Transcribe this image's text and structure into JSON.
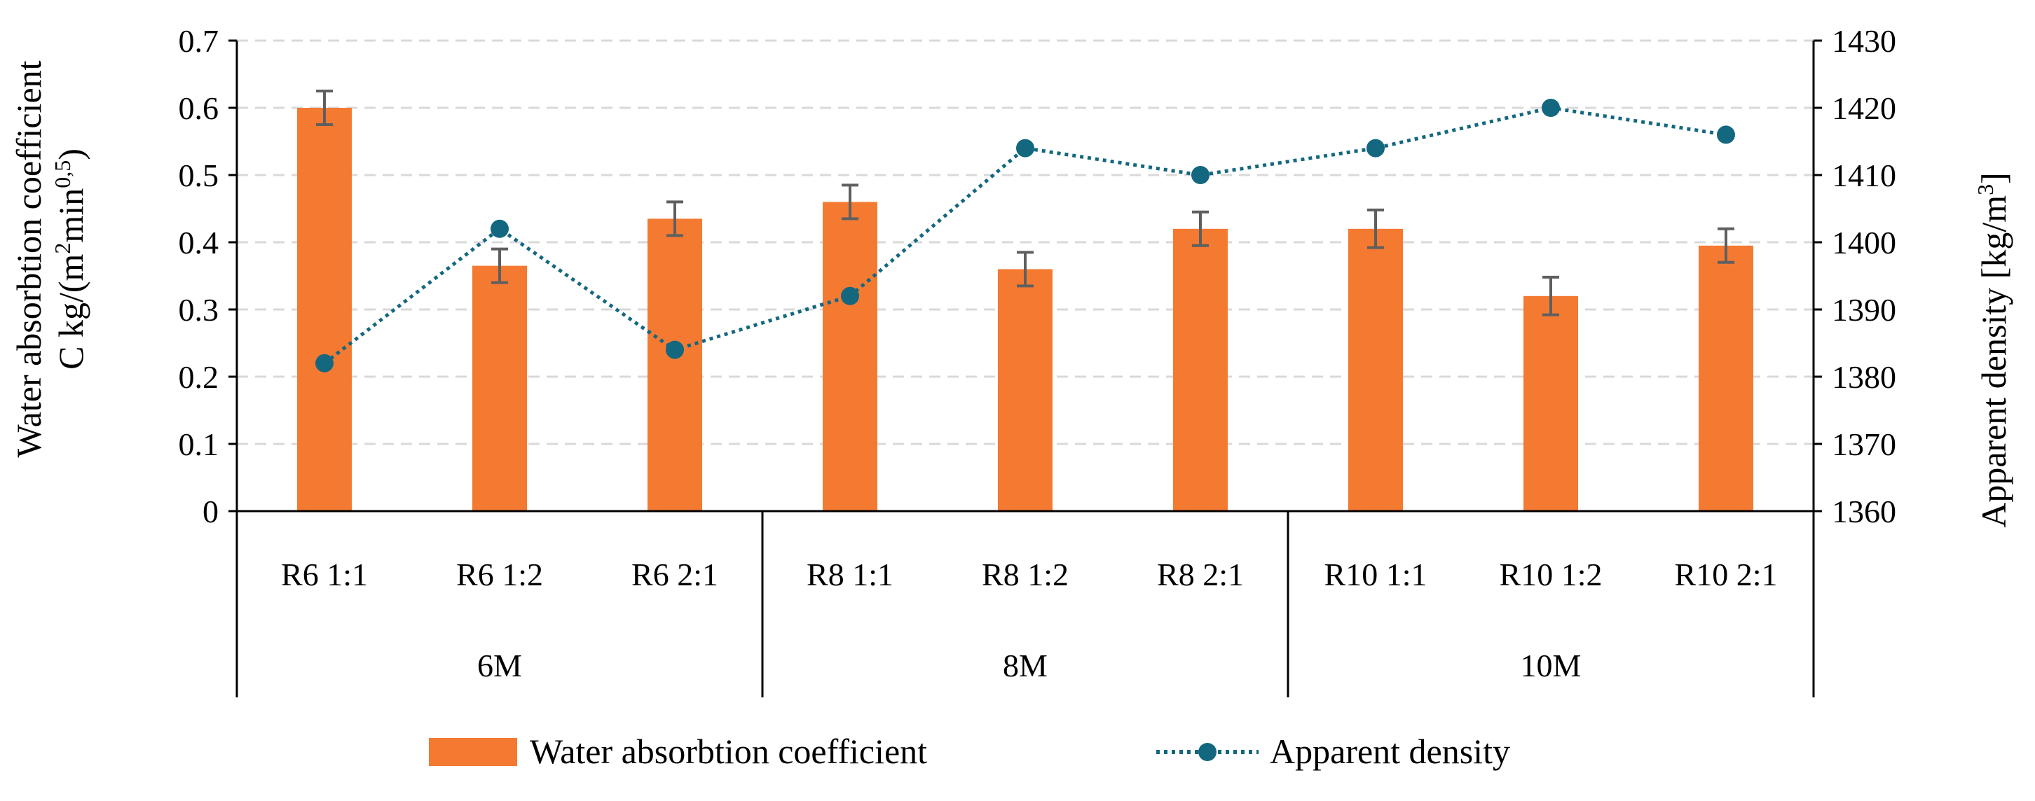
{
  "chart_data": {
    "type": "bar+line",
    "categories": [
      "R6 1:1",
      "R6 1:2",
      "R6 2:1",
      "R8 1:1",
      "R8 1:2",
      "R8 2:1",
      "R10 1:1",
      "R10 1:2",
      "R10 2:1"
    ],
    "groups": [
      {
        "label": "6M",
        "count": 3
      },
      {
        "label": "8M",
        "count": 3
      },
      {
        "label": "10M",
        "count": 3
      }
    ],
    "series": [
      {
        "name": "Water absorbtion coefficient",
        "type": "bar",
        "axis": "left",
        "values": [
          0.6,
          0.365,
          0.435,
          0.46,
          0.36,
          0.42,
          0.42,
          0.32,
          0.395
        ],
        "errors": [
          0.025,
          0.025,
          0.025,
          0.025,
          0.025,
          0.025,
          0.028,
          0.028,
          0.025
        ],
        "color": "#F47A32"
      },
      {
        "name": "Apparent density",
        "type": "line",
        "axis": "right",
        "values": [
          1382,
          1402,
          1384,
          1392,
          1414,
          1410,
          1414,
          1420,
          1416
        ],
        "color": "#13677F",
        "line_style": "dotted"
      }
    ],
    "y_left": {
      "label_line1": "Water absorbtion coefficient",
      "label_line2_prefix": "C kg/(m",
      "label_sup1": "2",
      "label_mid": "min",
      "label_sup2": "0,5",
      "label_suffix": ")",
      "lim": [
        0,
        0.7
      ],
      "ticks": [
        "0",
        "0.1",
        "0.2",
        "0.3",
        "0.4",
        "0.5",
        "0.6",
        "0.7"
      ]
    },
    "y_right": {
      "label_prefix": "Apparent density [kg/m",
      "label_sup": "3",
      "label_suffix": "]",
      "lim": [
        1360,
        1430
      ],
      "ticks": [
        "1360",
        "1370",
        "1380",
        "1390",
        "1400",
        "1410",
        "1420",
        "1430"
      ]
    },
    "gridlines": true,
    "legend_position": "bottom"
  }
}
